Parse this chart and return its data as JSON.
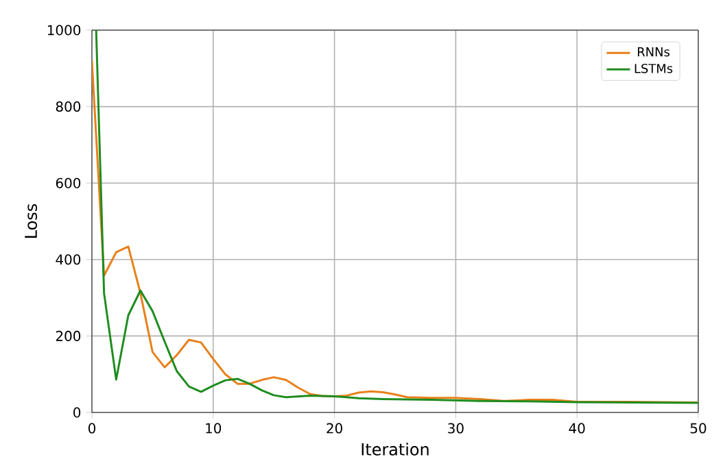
{
  "chart_data": {
    "type": "line",
    "xlabel": "Iteration",
    "ylabel": "Loss",
    "xlim": [
      0,
      50
    ],
    "ylim": [
      0,
      1000
    ],
    "xticks": [
      0,
      10,
      20,
      30,
      40,
      50
    ],
    "yticks": [
      0,
      200,
      400,
      600,
      800,
      1000
    ],
    "grid": true,
    "legend": "top right",
    "line_style": "solid",
    "marker": "none",
    "series": [
      {
        "name": "RNNs",
        "color": "#e8801a",
        "x": [
          0,
          1,
          2,
          3,
          4,
          5,
          6,
          7,
          8,
          9,
          10,
          11,
          12,
          13,
          14,
          15,
          16,
          17,
          18,
          19,
          20,
          21,
          22,
          23,
          24,
          25,
          26,
          28,
          30,
          32,
          34,
          36,
          38,
          40,
          44,
          50
        ],
        "values": [
          920,
          358,
          419,
          434,
          312,
          158,
          118,
          150,
          190,
          183,
          140,
          100,
          75,
          75,
          85,
          92,
          85,
          65,
          48,
          43,
          42,
          44,
          52,
          55,
          53,
          47,
          40,
          38,
          38,
          35,
          30,
          33,
          33,
          28,
          28,
          26
        ]
      },
      {
        "name": "LSTMs",
        "color": "#1f8c1f",
        "x": [
          0.35,
          1,
          2,
          3,
          4,
          5,
          6,
          7,
          8,
          9,
          10,
          11,
          12,
          13,
          14,
          15,
          16,
          17,
          18,
          19,
          20,
          21,
          22,
          24,
          28,
          32,
          36,
          40,
          45,
          50
        ],
        "values": [
          1000,
          312,
          86,
          254,
          319,
          265,
          185,
          108,
          68,
          54,
          70,
          84,
          88,
          75,
          58,
          45,
          40,
          42,
          44,
          43,
          42,
          40,
          37,
          35,
          33,
          30,
          29,
          27,
          26,
          25
        ]
      }
    ]
  }
}
